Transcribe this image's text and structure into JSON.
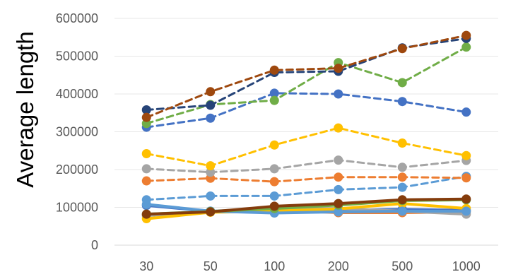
{
  "chart_data": {
    "type": "line",
    "title": "",
    "xlabel": "",
    "ylabel": "Average length",
    "categories": [
      "30",
      "50",
      "100",
      "200",
      "500",
      "1000"
    ],
    "ylim": [
      0,
      600000
    ],
    "yticks": [
      0,
      100000,
      200000,
      300000,
      400000,
      500000,
      600000
    ],
    "ytick_labels": [
      "0",
      "100000",
      "200000",
      "300000",
      "400000",
      "500000",
      "600000"
    ],
    "grid": "horizontal",
    "legend": "none",
    "series": [
      {
        "color": "#4472C4",
        "style": "solid",
        "values": [
          105000,
          90000,
          87000,
          92000,
          95000,
          92000
        ]
      },
      {
        "color": "#ED7D31",
        "style": "solid",
        "values": [
          80000,
          88000,
          93000,
          86000,
          86000,
          88000
        ]
      },
      {
        "color": "#A5A5A5",
        "style": "solid",
        "values": [
          78000,
          90000,
          97000,
          97000,
          90000,
          82000
        ]
      },
      {
        "color": "#FFC000",
        "style": "solid",
        "values": [
          70000,
          87000,
          90000,
          96000,
          110000,
          97000
        ]
      },
      {
        "color": "#5B9BD5",
        "style": "solid",
        "values": [
          108000,
          90000,
          85000,
          88000,
          90000,
          90000
        ]
      },
      {
        "color": "#70AD47",
        "style": "solid",
        "values": [
          82000,
          89000,
          97000,
          106000,
          118000,
          120000
        ]
      },
      {
        "color": "#843C0C",
        "style": "solid",
        "values": [
          82000,
          88000,
          103000,
          110000,
          120000,
          122000
        ]
      },
      {
        "color": "#5B9BD5",
        "style": "dashed",
        "values": [
          120000,
          130000,
          130000,
          147000,
          153000,
          182000
        ]
      },
      {
        "color": "#ED7D31",
        "style": "dashed",
        "values": [
          170000,
          177000,
          168000,
          180000,
          180000,
          178000
        ]
      },
      {
        "color": "#A5A5A5",
        "style": "dashed",
        "values": [
          202000,
          193000,
          202000,
          225000,
          206000,
          224000
        ]
      },
      {
        "color": "#FFC000",
        "style": "dashed",
        "values": [
          242000,
          210000,
          265000,
          310000,
          270000,
          237000
        ]
      },
      {
        "color": "#4472C4",
        "style": "dashed",
        "values": [
          312000,
          336000,
          402000,
          400000,
          380000,
          352000
        ]
      },
      {
        "color": "#70AD47",
        "style": "dashed",
        "values": [
          322000,
          372000,
          383000,
          483000,
          430000,
          524000
        ]
      },
      {
        "color": "#264478",
        "style": "dashed",
        "values": [
          358000,
          370000,
          457000,
          460000,
          522000,
          547000
        ]
      },
      {
        "color": "#9E480E",
        "style": "dashed",
        "values": [
          338000,
          406000,
          463000,
          468000,
          520000,
          555000
        ]
      }
    ]
  }
}
